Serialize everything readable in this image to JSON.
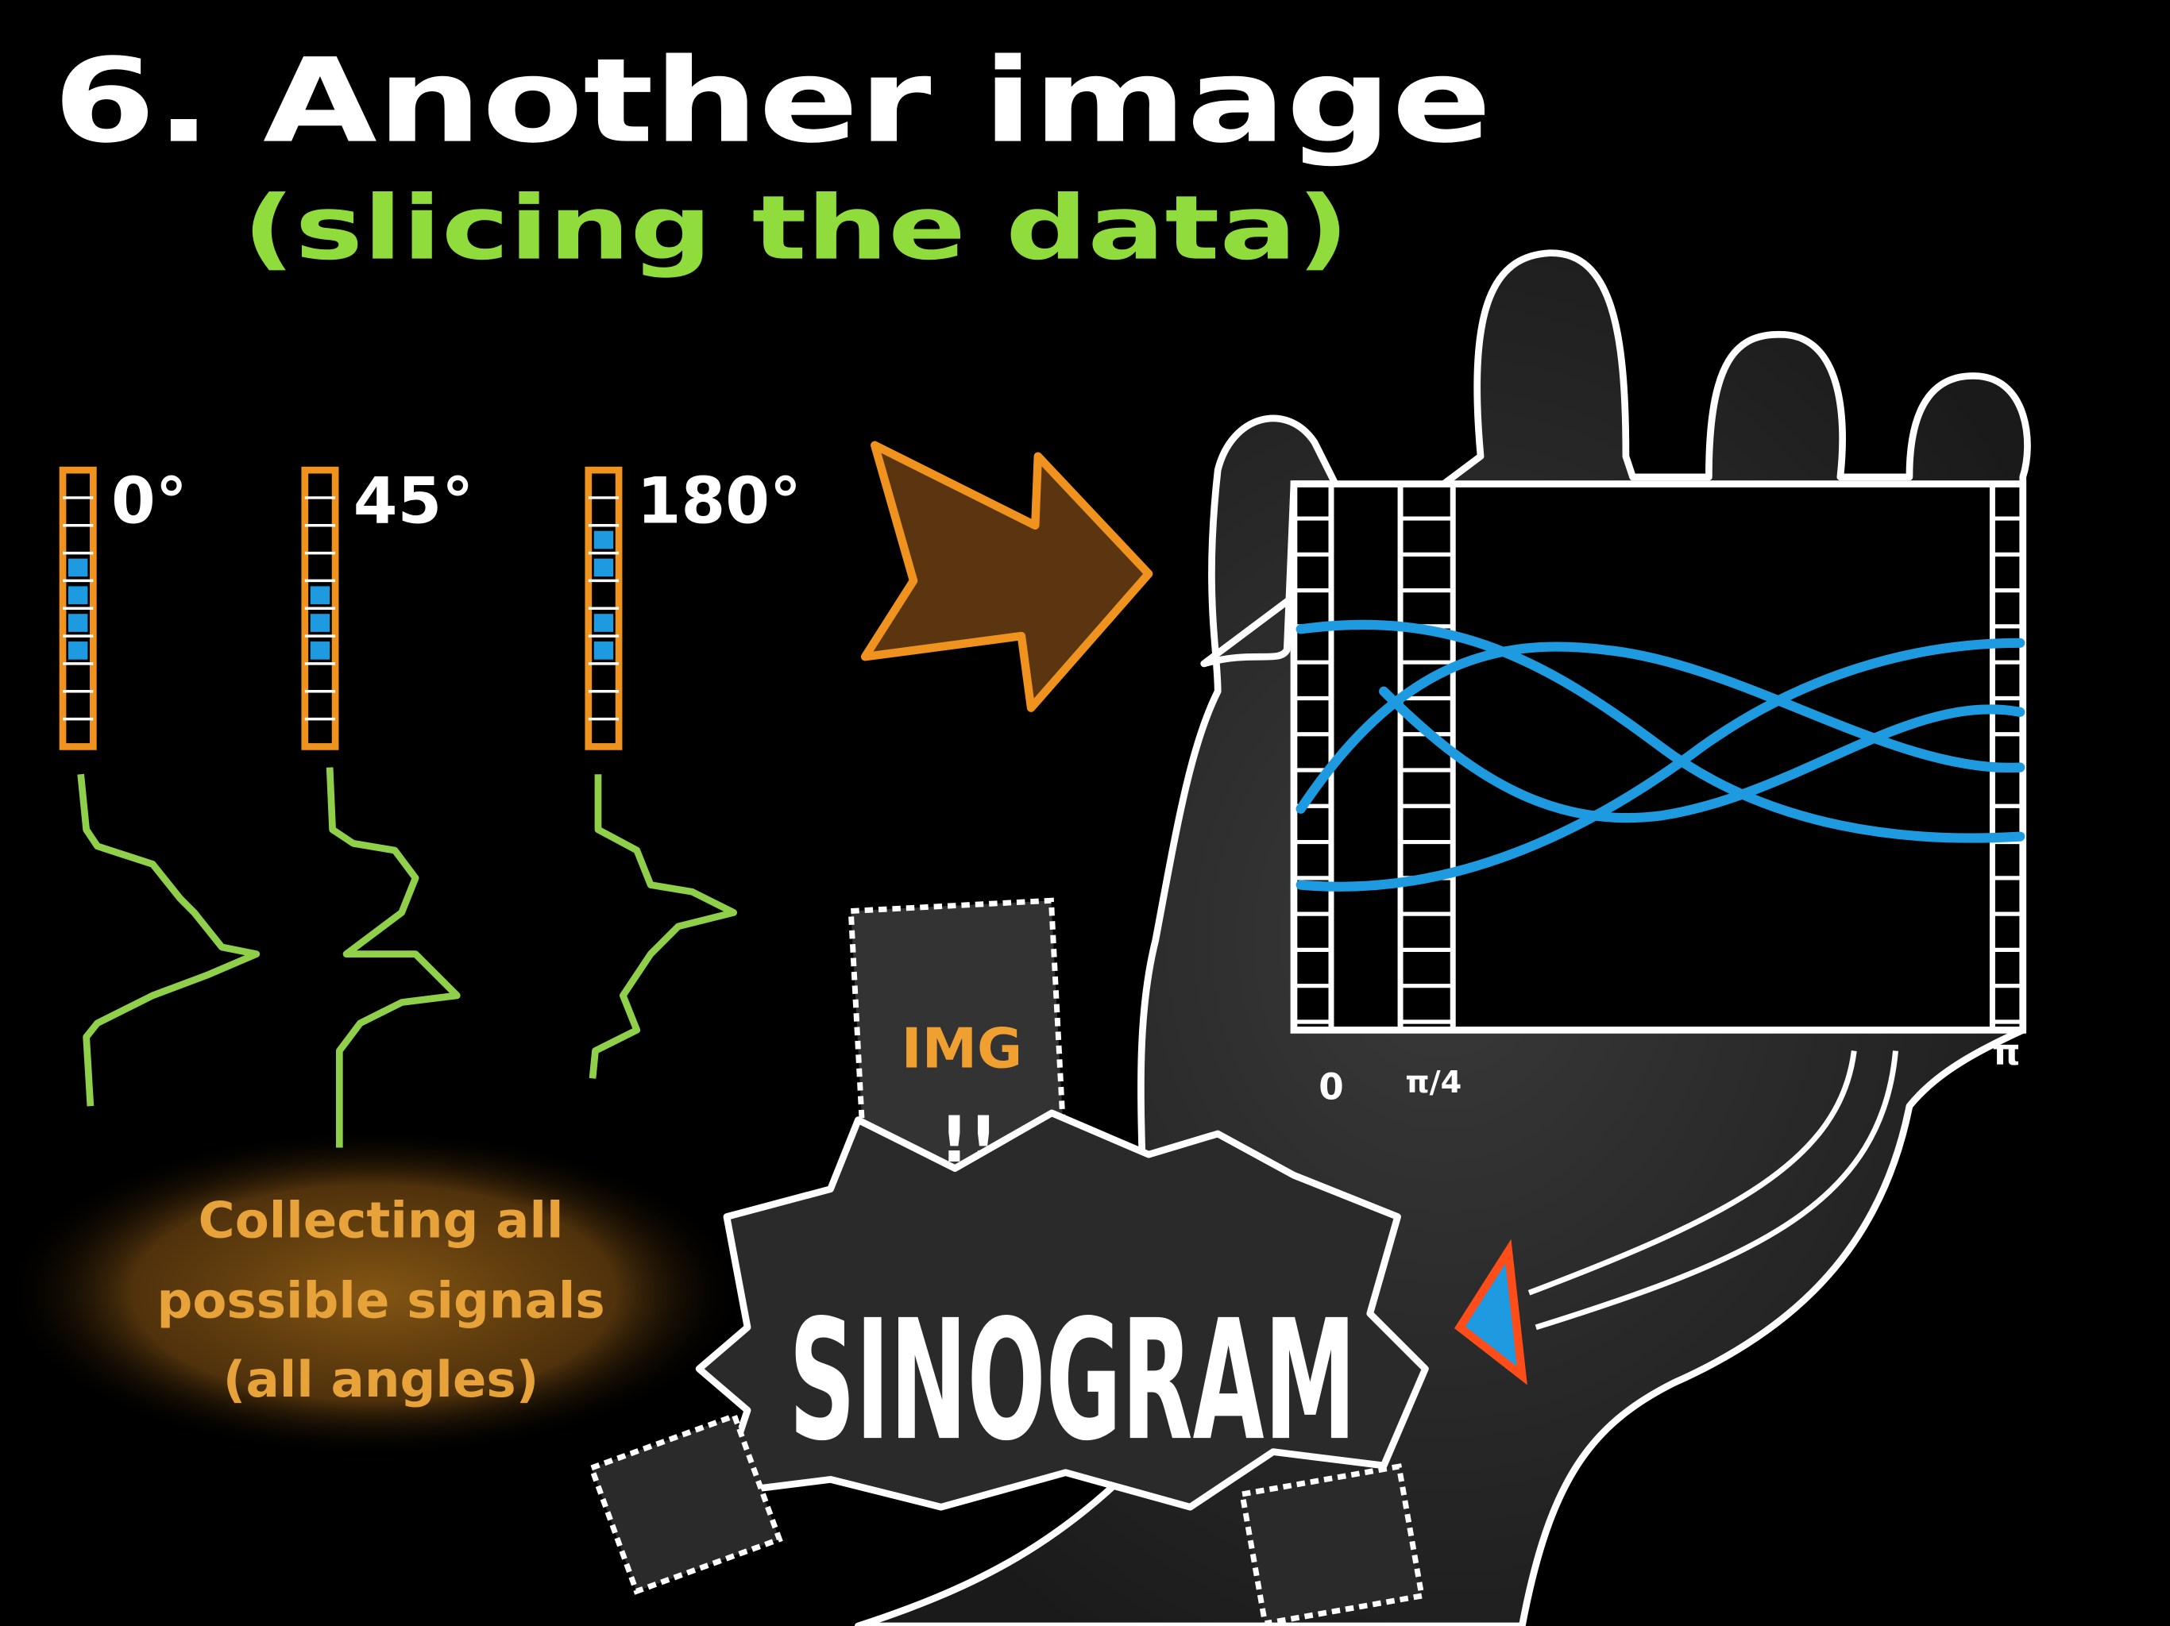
{
  "title": "6. Another image",
  "subtitle": "(slicing the data)",
  "detectors": [
    {
      "angle": "0°"
    },
    {
      "angle": "45°"
    },
    {
      "angle": "180°"
    }
  ],
  "caption": [
    "Collecting all",
    "possible signals",
    "(all angles)"
  ],
  "tag": {
    "top": "IMG",
    "bottom": "!!"
  },
  "banner": "SINOGRAM",
  "axis_labels": [
    "0",
    "π/4",
    "π"
  ]
}
